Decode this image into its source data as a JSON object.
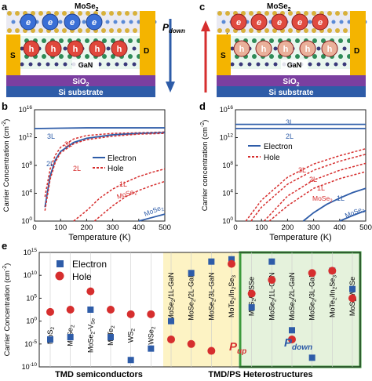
{
  "panel_a": {
    "letter": "a",
    "top_layer": "MoSe",
    "top_layer_sub": "2",
    "carrier_label": "e",
    "hole_label": "h",
    "substrate_mid": "GaN",
    "oxide": "SiO",
    "oxide_sub": "2",
    "base": "Si substrate",
    "source": "S",
    "drain": "D",
    "polarization": "P",
    "polarization_sub": "down",
    "colors": {
      "electron": "#e04a3f",
      "hole": "#e0473b",
      "contact": "#f4b400",
      "oxide": "#7b3fa0",
      "base": "#2e5ca8",
      "arrow": "#2e5ca8"
    }
  },
  "panel_c": {
    "letter": "c",
    "top_layer": "MoSe",
    "top_layer_sub": "2",
    "carrier_label": "e",
    "hole_label": "h",
    "substrate_mid": "GaN",
    "oxide": "SiO",
    "oxide_sub": "2",
    "base": "Si substrate",
    "source": "S",
    "drain": "D",
    "polarization": "P",
    "polarization_sub": "up",
    "colors": {
      "arrow": "#d62e2e"
    }
  },
  "panel_b": {
    "letter": "b",
    "ylabel": "Carrier Concentration (cm",
    "ylabel_sup": "-2",
    "ylabel_end": ")",
    "xlabel": "Temperature (K)",
    "xticks": [
      "0",
      "100",
      "200",
      "300",
      "400",
      "500"
    ],
    "yticks_exp": [
      "0",
      "4",
      "8",
      "12",
      "16"
    ],
    "tick_base": "10",
    "legend": [
      "Electron",
      "Hole"
    ],
    "curve_labels": [
      "3L",
      "3L",
      "2L",
      "2L",
      "1L",
      "MoSe",
      "MoSe"
    ],
    "sub2": "2"
  },
  "panel_d": {
    "letter": "d",
    "ylabel": "Carrier concentration (cm",
    "ylabel_sup": "-2",
    "ylabel_end": ")",
    "xlabel": "Temperature (K)",
    "xticks": [
      "0",
      "100",
      "200",
      "300",
      "400",
      "500"
    ],
    "yticks_exp": [
      "0",
      "4",
      "8",
      "12",
      "16"
    ],
    "tick_base": "10",
    "legend": [
      "Electron",
      "Hole"
    ],
    "curve_labels": [
      "3L",
      "2L",
      "3L",
      "2L",
      "1L",
      "MoSe",
      "1L",
      "MoSe"
    ],
    "sub2": "2"
  },
  "panel_e": {
    "letter": "e",
    "ylabel": "Carrier Concentration (cm",
    "ylabel_sup": "-2",
    "ylabel_end": ")",
    "yticks_exp": [
      "-10",
      "-5",
      "0",
      "5",
      "10",
      "15"
    ],
    "tick_base": "10",
    "legend": [
      "Electron",
      "Hole"
    ],
    "group_left": "TMD semiconductors",
    "group_right": "TMD/PS Heterostructures",
    "pup": "P",
    "pup_sub": "up",
    "pdown": "P",
    "pdown_sub": "down",
    "categories": [
      {
        "main": "MoS",
        "sub": "2",
        "rest": ""
      },
      {
        "main": "MoSe",
        "sub": "2",
        "rest": ""
      },
      {
        "main": "MoSe",
        "sub": "2",
        "rest": "-V",
        "sub2": "Se"
      },
      {
        "main": "MoTe",
        "sub": "2",
        "rest": ""
      },
      {
        "main": "WS",
        "sub": "2",
        "rest": ""
      },
      {
        "main": "WSe",
        "sub": "2",
        "rest": ""
      },
      {
        "main": "MoSe",
        "sub": "2",
        "rest": "/1L-GaN"
      },
      {
        "main": "MoSe",
        "sub": "2",
        "rest": "/2L-GaN"
      },
      {
        "main": "MoSe",
        "sub": "2",
        "rest": "/3L-GaN"
      },
      {
        "main": "MoTe",
        "sub": "2",
        "rest": "/In",
        "sub2": "2",
        "rest2": "Se",
        "sub3": "3"
      },
      {
        "main": "MoS",
        "sub": "2",
        "rest": "/WSSe"
      },
      {
        "main": "MoSe",
        "sub": "2",
        "rest": "/1L-GaN"
      },
      {
        "main": "MoSe",
        "sub": "2",
        "rest": "/2L-GaN"
      },
      {
        "main": "MoSe",
        "sub": "2",
        "rest": "/3L-GaN"
      },
      {
        "main": "MoTe",
        "sub": "2",
        "rest": "/In",
        "sub2": "2",
        "rest2": "Se",
        "sub3": "3"
      },
      {
        "main": "MoS",
        "sub": "2",
        "rest": "/WSSe"
      }
    ]
  },
  "chart_data": [
    {
      "panel": "b",
      "type": "line",
      "xlabel": "Temperature (K)",
      "ylabel": "Carrier Concentration (cm-2)",
      "xlim": [
        0,
        500
      ],
      "ylim_log10": [
        0,
        16
      ],
      "series": [
        {
          "name": "3L",
          "kind": "Electron",
          "x": [
            0,
            100,
            200,
            300,
            400,
            500
          ],
          "y_log10": [
            13.3,
            13.35,
            13.4,
            13.4,
            13.4,
            13.4
          ]
        },
        {
          "name": "3L",
          "kind": "Hole",
          "x": [
            40,
            60,
            80,
            100,
            150,
            200,
            300,
            400,
            500
          ],
          "y_log10": [
            3.5,
            7.5,
            9.5,
            10.6,
            11.8,
            12.3,
            12.6,
            12.7,
            12.8
          ]
        },
        {
          "name": "2L",
          "kind": "Electron",
          "x": [
            40,
            60,
            80,
            100,
            150,
            200,
            300,
            400,
            500
          ],
          "y_log10": [
            2.0,
            6.5,
            8.8,
            10.0,
            11.3,
            11.9,
            12.4,
            12.6,
            12.7
          ]
        },
        {
          "name": "2L",
          "kind": "Hole",
          "x": [
            40,
            60,
            80,
            100,
            150,
            200,
            300,
            400,
            500
          ],
          "y_log10": [
            1.5,
            6.0,
            8.5,
            9.8,
            11.1,
            11.7,
            12.2,
            12.5,
            12.6
          ]
        },
        {
          "name": "1L",
          "kind": "Hole",
          "x": [
            150,
            200,
            250,
            300,
            350,
            400,
            450,
            500
          ],
          "y_log10": [
            0,
            1.5,
            3.3,
            4.6,
            5.6,
            6.4,
            7.0,
            7.5
          ]
        },
        {
          "name": "MoSe2",
          "kind": "Hole",
          "x": [
            230,
            300,
            350,
            400,
            450,
            500
          ],
          "y_log10": [
            0,
            2.2,
            3.5,
            4.4,
            5.1,
            5.7
          ]
        },
        {
          "name": "MoSe2",
          "kind": "Electron",
          "x": [
            400,
            450,
            500
          ],
          "y_log10": [
            0,
            0.5,
            1.0
          ]
        }
      ]
    },
    {
      "panel": "d",
      "type": "line",
      "xlabel": "Temperature (K)",
      "ylabel": "Carrier concentration (cm-2)",
      "xlim": [
        0,
        500
      ],
      "ylim_log10": [
        0,
        16
      ],
      "series": [
        {
          "name": "3L",
          "kind": "Electron",
          "x": [
            0,
            500
          ],
          "y_log10": [
            13.9,
            13.9
          ]
        },
        {
          "name": "2L",
          "kind": "Electron",
          "x": [
            0,
            500
          ],
          "y_log10": [
            13.3,
            13.3
          ]
        },
        {
          "name": "3L",
          "kind": "Hole",
          "x": [
            40,
            100,
            200,
            300,
            400,
            500
          ],
          "y_log10": [
            0,
            3.0,
            6.3,
            8.2,
            9.4,
            10.4
          ]
        },
        {
          "name": "2L",
          "kind": "Hole",
          "x": [
            60,
            100,
            200,
            300,
            400,
            500
          ],
          "y_log10": [
            0,
            2.0,
            5.3,
            7.3,
            8.6,
            9.6
          ]
        },
        {
          "name": "1L",
          "kind": "Hole",
          "x": [
            110,
            200,
            300,
            400,
            500
          ],
          "y_log10": [
            0,
            3.6,
            5.9,
            7.3,
            8.3
          ]
        },
        {
          "name": "MoSe2",
          "kind": "Hole",
          "x": [
            130,
            200,
            300,
            400,
            500
          ],
          "y_log10": [
            0,
            2.2,
            4.7,
            6.1,
            7.1
          ]
        },
        {
          "name": "1L",
          "kind": "Electron",
          "x": [
            260,
            300,
            350,
            400,
            450,
            500
          ],
          "y_log10": [
            0,
            1.2,
            2.4,
            3.3,
            4.1,
            4.7
          ]
        },
        {
          "name": "MoSe2",
          "kind": "Electron",
          "x": [
            400,
            450,
            500
          ],
          "y_log10": [
            0,
            0.8,
            1.5
          ]
        }
      ]
    },
    {
      "panel": "e",
      "type": "scatter",
      "ylabel": "Carrier Concentration (cm-2)",
      "ylim_log10": [
        -10,
        15
      ],
      "categories": [
        "MoS2",
        "MoSe2",
        "MoSe2-VSe",
        "MoTe2",
        "WS2",
        "WSe2",
        "MoSe2/1L-GaN",
        "MoSe2/2L-GaN",
        "MoSe2/3L-GaN",
        "MoTe2/In2Se3",
        "MoS2/WSSe",
        "MoSe2/1L-GaN",
        "MoSe2/2L-GaN",
        "MoSe2/3L-GaN",
        "MoTe2/In2Se3",
        "MoS2/WSSe"
      ],
      "series": [
        {
          "name": "Electron",
          "y_log10": [
            -4.0,
            -3.5,
            2.5,
            -3.5,
            -8.5,
            -6.0,
            0.0,
            10.5,
            13.0,
            13.5,
            3.0,
            13.0,
            -2.0,
            -8.0,
            11.0,
            7.0
          ]
        },
        {
          "name": "Hole",
          "y_log10": [
            2.0,
            2.5,
            6.5,
            2.5,
            1.5,
            1.5,
            -4.0,
            -5.0,
            -6.5,
            12.5,
            6.0,
            9.0,
            -4.0,
            10.5,
            11.0,
            5.0
          ]
        }
      ]
    }
  ]
}
